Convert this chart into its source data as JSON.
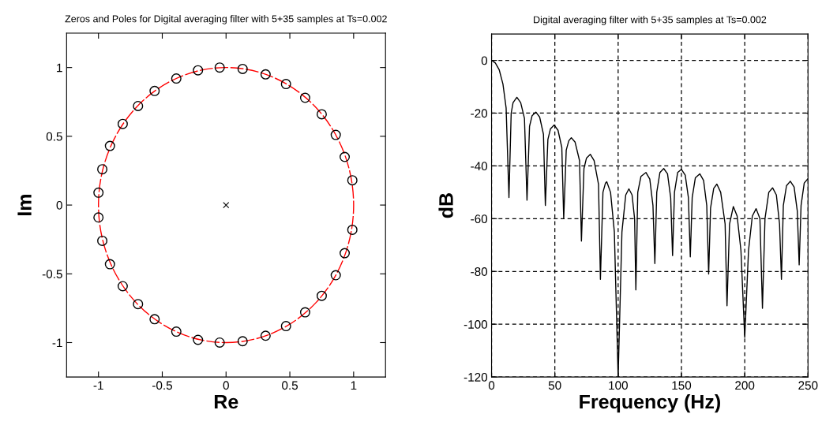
{
  "chart_data": [
    {
      "type": "scatter",
      "title": "Zeros and Poles for Digital averaging filter with 5+35 samples at Ts=0.002",
      "xlabel": "Re",
      "ylabel": "Im",
      "xlim": [
        -1.25,
        1.25
      ],
      "ylim": [
        -1.25,
        1.25
      ],
      "xticks": [
        -1,
        -0.5,
        0,
        0.5,
        1
      ],
      "yticks": [
        -1,
        -0.5,
        0,
        0.5,
        1
      ],
      "grid": false,
      "legend": false,
      "series": [
        {
          "type": "scatter",
          "color": "#000000",
          "marker": "circle",
          "x": [
            -0.05,
            0.13,
            0.31,
            0.47,
            0.62,
            0.75,
            0.86,
            0.93,
            0.99,
            0.99,
            0.93,
            0.86,
            0.75,
            0.62,
            0.47,
            0.31,
            0.13,
            -0.05,
            -0.22,
            -0.39,
            -0.56,
            -0.69,
            -0.81,
            -0.91,
            -0.97,
            -1,
            -1,
            -0.97,
            -0.91,
            -0.81,
            -0.69,
            -0.56,
            -0.39,
            -0.22
          ],
          "values": [
            1,
            0.99,
            0.95,
            0.88,
            0.78,
            0.66,
            0.51,
            0.35,
            0.18,
            -0.18,
            -0.35,
            -0.51,
            -0.66,
            -0.78,
            -0.88,
            -0.95,
            -0.99,
            -1,
            -0.98,
            -0.92,
            -0.83,
            -0.72,
            -0.59,
            -0.43,
            -0.26,
            -0.09,
            0.09,
            0.26,
            0.43,
            0.59,
            0.72,
            0.83,
            0.92,
            0.98
          ]
        },
        {
          "type": "scatter",
          "color": "#000000",
          "marker": "cross",
          "x": [
            0
          ],
          "values": [
            0
          ]
        }
      ]
    },
    {
      "type": "line",
      "title": "Digital averaging filter with 5+35 samples at Ts=0.002",
      "xlabel": "Frequency (Hz)",
      "ylabel": "dB",
      "xlim": [
        0,
        250
      ],
      "ylim": [
        -120,
        10
      ],
      "xticks": [
        0,
        50,
        100,
        150,
        200,
        250
      ],
      "yticks": [
        -120,
        -100,
        -80,
        -60,
        -40,
        -20,
        0
      ],
      "grid": true,
      "legend": false,
      "line_style": "solid",
      "marker": "none",
      "series": [
        {
          "color": "#000000",
          "x": [
            0,
            3,
            6,
            9,
            11.5,
            13.75,
            15.5,
            17,
            20,
            23,
            26,
            28,
            30,
            32,
            35,
            38,
            41,
            42.5,
            44.5,
            46.5,
            49.5,
            52.5,
            55.5,
            57,
            59,
            61,
            63,
            66,
            69.5,
            71,
            73,
            75,
            78,
            81,
            84.5,
            86,
            88,
            90,
            91,
            94,
            97,
            100,
            103,
            106,
            108.5,
            111,
            113,
            114,
            115.5,
            118,
            122,
            125,
            127.5,
            129,
            130.5,
            133,
            136,
            139,
            141.5,
            143,
            144.5,
            147,
            150,
            153,
            155.5,
            157,
            158.5,
            161,
            164.5,
            167.5,
            170,
            171.5,
            173,
            175.5,
            178,
            181,
            184.5,
            186,
            188,
            191,
            194,
            197,
            200,
            203,
            206,
            209,
            212,
            214,
            216,
            219,
            222,
            225,
            227.5,
            229,
            230.5,
            233,
            236,
            239,
            241.5,
            243,
            244.5,
            247,
            250
          ],
          "values": [
            0,
            -1,
            -3.5,
            -9,
            -18,
            -52,
            -20,
            -16,
            -14,
            -16,
            -22,
            -53,
            -25,
            -21,
            -19.6,
            -21.5,
            -28,
            -55,
            -30,
            -26,
            -24.5,
            -26.5,
            -33,
            -60,
            -34,
            -30.5,
            -29.3,
            -31,
            -38,
            -68.5,
            -41,
            -37,
            -35.6,
            -38,
            -47,
            -83,
            -50,
            -46.5,
            -46,
            -50,
            -65,
            -120,
            -65,
            -51,
            -48.7,
            -51,
            -60,
            -87,
            -50,
            -44,
            -42.5,
            -45,
            -55,
            -77,
            -50,
            -42.5,
            -41,
            -43,
            -52,
            -74,
            -50,
            -42.5,
            -41.3,
            -43.5,
            -52,
            -74.5,
            -52,
            -44.5,
            -43,
            -45.5,
            -55,
            -81,
            -56,
            -48.5,
            -46.9,
            -50,
            -62,
            -93,
            -62,
            -55.4,
            -59,
            -72,
            -105,
            -72,
            -59,
            -56.2,
            -60,
            -94,
            -60,
            -50,
            -48.3,
            -51,
            -62,
            -83,
            -55,
            -47.5,
            -45.8,
            -48,
            -57,
            -77.5,
            -55,
            -46.5,
            -44.8
          ]
        }
      ]
    }
  ]
}
